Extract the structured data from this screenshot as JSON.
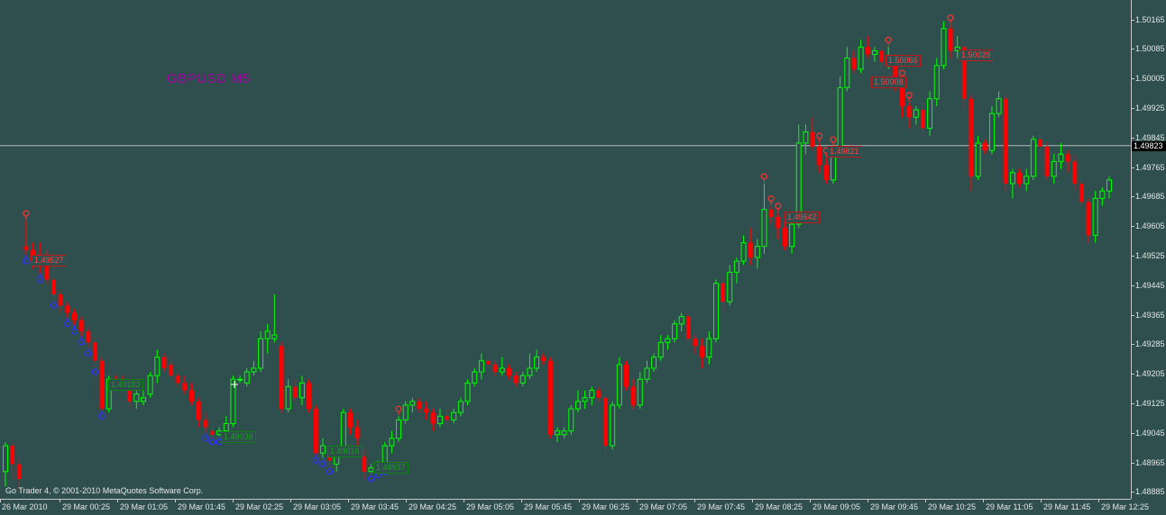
{
  "window": {
    "symbol_label": "GBPUSD M5",
    "copyright": "Go Trader 4, © 2001-2010 MetaQuotes Software Corp."
  },
  "colors": {
    "background": "#2f4f4f",
    "bull": "#00ff00",
    "bear": "#ff0000",
    "axis_text": "#e6e6e6",
    "fractal_up": "#ff3030",
    "fractal_down": "#3030ff"
  },
  "price_axis": {
    "labels": [
      "1.50165",
      "1.50085",
      "1.50005",
      "1.49925",
      "1.49845",
      "1.49765",
      "1.49685",
      "1.49605",
      "1.49525",
      "1.49445",
      "1.49365",
      "1.49285",
      "1.49205",
      "1.49125",
      "1.49045",
      "1.48965",
      "1.48885"
    ],
    "current_price": "1.49823"
  },
  "time_axis": {
    "labels": [
      "26 Mar 2010",
      "29 Mar 00:25",
      "29 Mar 01:05",
      "29 Mar 01:45",
      "29 Mar 02:25",
      "29 Mar 03:05",
      "29 Mar 03:45",
      "29 Mar 04:25",
      "29 Mar 05:05",
      "29 Mar 05:45",
      "29 Mar 06:25",
      "29 Mar 07:05",
      "29 Mar 07:45",
      "29 Mar 08:25",
      "29 Mar 09:05",
      "29 Mar 09:45",
      "29 Mar 10:25",
      "29 Mar 11:05",
      "29 Mar 11:45",
      "29 Mar 12:25"
    ]
  },
  "price_labels": {
    "red": [
      "1.49527",
      "1.49642",
      "1.49821",
      "1.50008",
      "1.50066",
      "1.50029"
    ],
    "green": [
      "1.49183",
      "1.49038",
      "1.49016",
      "1.48937"
    ]
  },
  "chart_data": {
    "type": "candlestick",
    "symbol": "GBPUSD",
    "timeframe": "M5",
    "ylim": [
      1.48876,
      1.50198
    ],
    "current_price": 1.49823,
    "candles": [
      [
        1.4894,
        1.4902,
        1.489,
        1.4901
      ],
      [
        1.4901,
        1.4902,
        1.4892,
        1.4896
      ],
      [
        1.4896,
        1.4898,
        1.4889,
        1.4892
      ],
      [
        1.4955,
        1.4962,
        1.4952,
        1.4954
      ],
      [
        1.4954,
        1.4956,
        1.4949,
        1.4951
      ],
      [
        1.4952,
        1.4956,
        1.4947,
        1.495
      ],
      [
        1.495,
        1.4954,
        1.4945,
        1.4946
      ],
      [
        1.4946,
        1.495,
        1.494,
        1.4942
      ],
      [
        1.4942,
        1.4943,
        1.4937,
        1.4939
      ],
      [
        1.4939,
        1.494,
        1.4935,
        1.4937
      ],
      [
        1.4937,
        1.4938,
        1.4933,
        1.4935
      ],
      [
        1.4935,
        1.4936,
        1.493,
        1.4932
      ],
      [
        1.4932,
        1.4933,
        1.4927,
        1.4929
      ],
      [
        1.4929,
        1.4931,
        1.4922,
        1.4924
      ],
      [
        1.4924,
        1.4925,
        1.491,
        1.4911
      ],
      [
        1.4911,
        1.492,
        1.491,
        1.4919
      ],
      [
        1.4919,
        1.492,
        1.4917,
        1.4918
      ],
      [
        1.4918,
        1.492,
        1.4916,
        1.4917
      ],
      [
        1.4917,
        1.4918,
        1.4911,
        1.4913
      ],
      [
        1.4913,
        1.4916,
        1.4911,
        1.4915
      ],
      [
        1.4913,
        1.4916,
        1.4912,
        1.4914
      ],
      [
        1.4915,
        1.4921,
        1.4914,
        1.492
      ],
      [
        1.492,
        1.4927,
        1.4918,
        1.4925
      ],
      [
        1.4925,
        1.4926,
        1.4921,
        1.4922
      ],
      [
        1.4923,
        1.4925,
        1.4919,
        1.492
      ],
      [
        1.492,
        1.4921,
        1.4917,
        1.4918
      ],
      [
        1.4918,
        1.492,
        1.4915,
        1.4916
      ],
      [
        1.4916,
        1.4918,
        1.4912,
        1.4913
      ],
      [
        1.4913,
        1.4914,
        1.4906,
        1.4908
      ],
      [
        1.4908,
        1.491,
        1.4904,
        1.4906
      ],
      [
        1.4905,
        1.4907,
        1.4903,
        1.4904
      ],
      [
        1.4904,
        1.4906,
        1.4903,
        1.4905
      ],
      [
        1.4905,
        1.4909,
        1.4905,
        1.4907
      ],
      [
        1.4907,
        1.492,
        1.4906,
        1.4919
      ],
      [
        1.4919,
        1.492,
        1.4918,
        1.4919
      ],
      [
        1.4918,
        1.4922,
        1.4917,
        1.4921
      ],
      [
        1.4921,
        1.4924,
        1.492,
        1.4922
      ],
      [
        1.4922,
        1.4932,
        1.4921,
        1.493
      ],
      [
        1.493,
        1.4934,
        1.4926,
        1.4932
      ],
      [
        1.493,
        1.4942,
        1.4929,
        1.4931
      ],
      [
        1.4928,
        1.4929,
        1.491,
        1.4911
      ],
      [
        1.4911,
        1.4919,
        1.491,
        1.4917
      ],
      [
        1.4917,
        1.4919,
        1.4913,
        1.4914
      ],
      [
        1.4914,
        1.492,
        1.4912,
        1.4918
      ],
      [
        1.4918,
        1.4919,
        1.491,
        1.4911
      ],
      [
        1.4911,
        1.4912,
        1.4898,
        1.4899
      ],
      [
        1.4899,
        1.4903,
        1.4897,
        1.4901
      ],
      [
        1.4901,
        1.4903,
        1.4895,
        1.4897
      ],
      [
        1.4896,
        1.49,
        1.4894,
        1.4899
      ],
      [
        1.4899,
        1.4911,
        1.4899,
        1.491
      ],
      [
        1.491,
        1.4911,
        1.4904,
        1.4906
      ],
      [
        1.4906,
        1.4908,
        1.4898,
        1.4903
      ],
      [
        1.4898,
        1.49,
        1.4892,
        1.4894
      ],
      [
        1.4894,
        1.4896,
        1.4893,
        1.4895
      ],
      [
        1.4895,
        1.4897,
        1.4894,
        1.4896
      ],
      [
        1.4896,
        1.4902,
        1.4895,
        1.4901
      ],
      [
        1.4901,
        1.4905,
        1.4899,
        1.4903
      ],
      [
        1.4903,
        1.4909,
        1.4902,
        1.4908
      ],
      [
        1.4908,
        1.4913,
        1.4907,
        1.4912
      ],
      [
        1.4912,
        1.4914,
        1.491,
        1.4913
      ],
      [
        1.4913,
        1.4914,
        1.491,
        1.4911
      ],
      [
        1.4911,
        1.4913,
        1.4908,
        1.491
      ],
      [
        1.491,
        1.4911,
        1.4905,
        1.4907
      ],
      [
        1.4907,
        1.4911,
        1.4906,
        1.4909
      ],
      [
        1.4909,
        1.4911,
        1.4906,
        1.4908
      ],
      [
        1.4908,
        1.4911,
        1.4907,
        1.491
      ],
      [
        1.491,
        1.4914,
        1.4909,
        1.4913
      ],
      [
        1.4913,
        1.4919,
        1.4912,
        1.4918
      ],
      [
        1.4918,
        1.4922,
        1.4917,
        1.4921
      ],
      [
        1.4921,
        1.4926,
        1.4919,
        1.4924
      ],
      [
        1.4924,
        1.4925,
        1.4922,
        1.4923
      ],
      [
        1.4923,
        1.4924,
        1.492,
        1.4921
      ],
      [
        1.4921,
        1.4925,
        1.492,
        1.4922
      ],
      [
        1.4922,
        1.4923,
        1.4919,
        1.492
      ],
      [
        1.492,
        1.4921,
        1.4917,
        1.4918
      ],
      [
        1.4918,
        1.4921,
        1.4917,
        1.492
      ],
      [
        1.492,
        1.4926,
        1.4919,
        1.4922
      ],
      [
        1.4922,
        1.4927,
        1.4921,
        1.4925
      ],
      [
        1.4925,
        1.4926,
        1.4923,
        1.4924
      ],
      [
        1.4924,
        1.4925,
        1.4903,
        1.4904
      ],
      [
        1.4904,
        1.4906,
        1.4902,
        1.4905
      ],
      [
        1.4904,
        1.4906,
        1.4903,
        1.4905
      ],
      [
        1.4905,
        1.4912,
        1.4904,
        1.4911
      ],
      [
        1.4911,
        1.4916,
        1.491,
        1.4913
      ],
      [
        1.4913,
        1.4916,
        1.4911,
        1.4914
      ],
      [
        1.4914,
        1.4917,
        1.4912,
        1.4916
      ],
      [
        1.4916,
        1.4917,
        1.4913,
        1.4914
      ],
      [
        1.4914,
        1.4915,
        1.4899,
        1.4901
      ],
      [
        1.4901,
        1.4913,
        1.49,
        1.4912
      ],
      [
        1.4912,
        1.4925,
        1.4911,
        1.4923
      ],
      [
        1.4923,
        1.4924,
        1.4916,
        1.4917
      ],
      [
        1.4917,
        1.4919,
        1.4911,
        1.4912
      ],
      [
        1.4912,
        1.4921,
        1.4911,
        1.4919
      ],
      [
        1.4919,
        1.4924,
        1.4918,
        1.4922
      ],
      [
        1.4922,
        1.4926,
        1.4921,
        1.4925
      ],
      [
        1.4925,
        1.4931,
        1.4924,
        1.4929
      ],
      [
        1.4929,
        1.4931,
        1.4927,
        1.493
      ],
      [
        1.493,
        1.4935,
        1.4929,
        1.4934
      ],
      [
        1.4934,
        1.4937,
        1.4932,
        1.4936
      ],
      [
        1.4936,
        1.4937,
        1.4929,
        1.493
      ],
      [
        1.493,
        1.4931,
        1.4926,
        1.4928
      ],
      [
        1.4928,
        1.493,
        1.4922,
        1.4925
      ],
      [
        1.4925,
        1.4932,
        1.4923,
        1.493
      ],
      [
        1.493,
        1.4946,
        1.4929,
        1.4945
      ],
      [
        1.4945,
        1.4946,
        1.4937,
        1.494
      ],
      [
        1.494,
        1.495,
        1.4939,
        1.4948
      ],
      [
        1.4948,
        1.4952,
        1.4945,
        1.4951
      ],
      [
        1.4951,
        1.4958,
        1.495,
        1.4956
      ],
      [
        1.4956,
        1.496,
        1.495,
        1.4952
      ],
      [
        1.4952,
        1.4957,
        1.4949,
        1.4955
      ],
      [
        1.4955,
        1.4972,
        1.4953,
        1.4965
      ],
      [
        1.4965,
        1.4966,
        1.4961,
        1.4963
      ],
      [
        1.4963,
        1.4964,
        1.4957,
        1.496
      ],
      [
        1.496,
        1.4962,
        1.4954,
        1.4955
      ],
      [
        1.4955,
        1.4962,
        1.4953,
        1.4961
      ],
      [
        1.4961,
        1.4988,
        1.496,
        1.4983
      ],
      [
        1.4983,
        1.4988,
        1.498,
        1.4986
      ],
      [
        1.4986,
        1.499,
        1.4981,
        1.4982
      ],
      [
        1.4982,
        1.4983,
        1.4975,
        1.4977
      ],
      [
        1.4977,
        1.4979,
        1.4972,
        1.4973
      ],
      [
        1.4973,
        1.4982,
        1.4972,
        1.4981
      ],
      [
        1.4981,
        1.5001,
        1.498,
        1.4998
      ],
      [
        1.4998,
        1.5009,
        1.4997,
        1.5006
      ],
      [
        1.5006,
        1.5008,
        1.5002,
        1.5003
      ],
      [
        1.5003,
        1.5011,
        1.5002,
        1.5009
      ],
      [
        1.5009,
        1.5012,
        1.5006,
        1.5007
      ],
      [
        1.5007,
        1.5009,
        1.5005,
        1.5008
      ],
      [
        1.5008,
        1.501,
        1.5003,
        1.5005
      ],
      [
        1.5005,
        1.5009,
        1.5003,
        1.5006
      ],
      [
        1.5006,
        1.5007,
        1.4997,
        1.4999
      ],
      [
        1.4999,
        1.5,
        1.499,
        1.4993
      ],
      [
        1.4993,
        1.4994,
        1.4987,
        1.499
      ],
      [
        1.499,
        1.4993,
        1.4988,
        1.4992
      ],
      [
        1.4992,
        1.4994,
        1.4985,
        1.4987
      ],
      [
        1.4987,
        1.4997,
        1.4985,
        1.4995
      ],
      [
        1.4995,
        1.5006,
        1.4993,
        1.5004
      ],
      [
        1.5004,
        1.5016,
        1.5003,
        1.5014
      ],
      [
        1.5014,
        1.5015,
        1.5006,
        1.5008
      ],
      [
        1.5008,
        1.5012,
        1.5006,
        1.5009
      ],
      [
        1.5009,
        1.501,
        1.4992,
        1.4995
      ],
      [
        1.4995,
        1.4996,
        1.497,
        1.4974
      ],
      [
        1.4974,
        1.4985,
        1.4973,
        1.4983
      ],
      [
        1.4983,
        1.4984,
        1.498,
        1.4981
      ],
      [
        1.4981,
        1.4993,
        1.498,
        1.4991
      ],
      [
        1.4991,
        1.4997,
        1.499,
        1.4995
      ],
      [
        1.4995,
        1.4996,
        1.497,
        1.4972
      ],
      [
        1.4972,
        1.4976,
        1.4968,
        1.4975
      ],
      [
        1.4975,
        1.4976,
        1.4971,
        1.4972
      ],
      [
        1.4972,
        1.4976,
        1.497,
        1.4974
      ],
      [
        1.4974,
        1.4985,
        1.4973,
        1.4984
      ],
      [
        1.4984,
        1.4985,
        1.498,
        1.4982
      ],
      [
        1.4982,
        1.4983,
        1.4973,
        1.4974
      ],
      [
        1.4974,
        1.498,
        1.4972,
        1.4978
      ],
      [
        1.4978,
        1.4983,
        1.4976,
        1.498
      ],
      [
        1.498,
        1.4981,
        1.4975,
        1.4978
      ],
      [
        1.4978,
        1.498,
        1.497,
        1.4972
      ],
      [
        1.4972,
        1.4973,
        1.4966,
        1.4967
      ],
      [
        1.4967,
        1.4968,
        1.4956,
        1.4958
      ],
      [
        1.4958,
        1.497,
        1.4956,
        1.4968
      ],
      [
        1.4968,
        1.4971,
        1.4966,
        1.497
      ],
      [
        1.497,
        1.4974,
        1.4968,
        1.4973
      ]
    ],
    "fractals_up": [
      3,
      57,
      110,
      111,
      112,
      118,
      119,
      120,
      128,
      130,
      131,
      137
    ],
    "fractals_down": [
      3,
      5,
      7,
      9,
      10,
      11,
      12,
      13,
      14,
      29,
      30,
      31,
      45,
      46,
      47,
      53,
      54,
      55
    ]
  }
}
